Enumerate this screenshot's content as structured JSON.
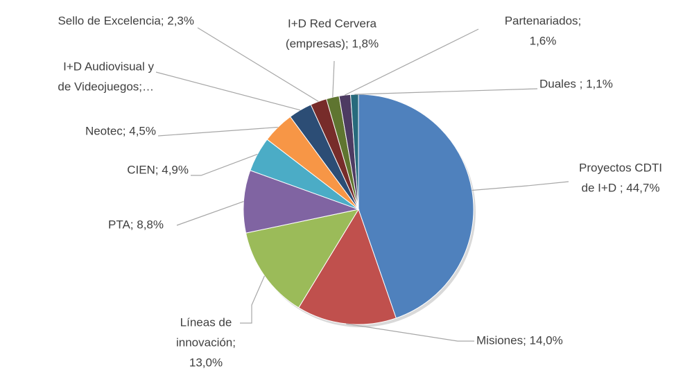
{
  "chart_data": {
    "type": "pie",
    "labels": [
      [
        "Proyectos CDTI",
        "de I+D ; 44,7%"
      ],
      [
        "Misiones; 14,0%"
      ],
      [
        "Líneas de",
        "innovación;",
        "13,0%"
      ],
      [
        "PTA; 8,8%"
      ],
      [
        "CIEN; 4,9%"
      ],
      [
        "Neotec; 4,5%"
      ],
      [
        "I+D Audiovisual y",
        "de Videojuegos;…"
      ],
      [
        "Sello de Excelencia; 2,3%"
      ],
      [
        "I+D Red Cervera",
        "(empresas); 1,8%"
      ],
      [
        "Partenariados;",
        "1,6%"
      ],
      [
        "Duales ; 1,1%"
      ]
    ],
    "values": [
      44.7,
      14.0,
      13.0,
      8.8,
      4.9,
      4.5,
      3.3,
      2.3,
      1.8,
      1.6,
      1.1
    ],
    "colors": [
      "#4f81bd",
      "#c0504d",
      "#9bbb59",
      "#8064a2",
      "#4bacc6",
      "#f79646",
      "#2c4d75",
      "#772c2a",
      "#5f7530",
      "#4d3b62",
      "#276a7c"
    ]
  }
}
